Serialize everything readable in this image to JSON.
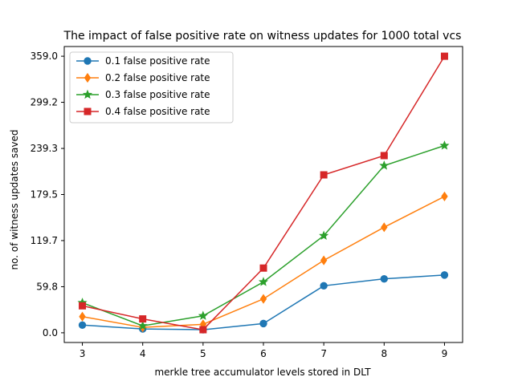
{
  "chart_data": {
    "type": "line",
    "title": "The impact of false positive rate on witness updates for 1000 total vcs",
    "xlabel": "merkle tree accumulator levels stored in DLT",
    "ylabel": "no. of witness updates saved",
    "x": [
      3,
      4,
      5,
      6,
      7,
      8,
      9
    ],
    "xlim": [
      2.7,
      9.3
    ],
    "ylim": [
      -12.6,
      371.6
    ],
    "yticks": [
      0.0,
      59.8,
      119.7,
      179.5,
      239.3,
      299.2,
      359.0
    ],
    "ytick_labels": [
      "0.0",
      "59.8",
      "119.7",
      "179.5",
      "239.3",
      "299.2",
      "359.0"
    ],
    "xtick_labels": [
      "3",
      "4",
      "5",
      "6",
      "7",
      "8",
      "9"
    ],
    "legend_position": "top-left",
    "series": [
      {
        "name": "0.1 false positive rate",
        "color": "#1f77b4",
        "marker": "circle",
        "values": [
          10,
          5,
          4,
          12,
          61,
          70,
          75
        ]
      },
      {
        "name": "0.2 false positive rate",
        "color": "#ff7f0e",
        "marker": "diamond",
        "values": [
          21,
          7,
          11,
          44,
          94,
          137,
          177
        ]
      },
      {
        "name": "0.3 false positive rate",
        "color": "#2ca02c",
        "marker": "star",
        "values": [
          39,
          9,
          22,
          66,
          126,
          217,
          243
        ]
      },
      {
        "name": "0.4 false positive rate",
        "color": "#d62728",
        "marker": "square",
        "values": [
          35,
          18,
          4,
          84,
          205,
          230,
          359
        ]
      }
    ]
  }
}
